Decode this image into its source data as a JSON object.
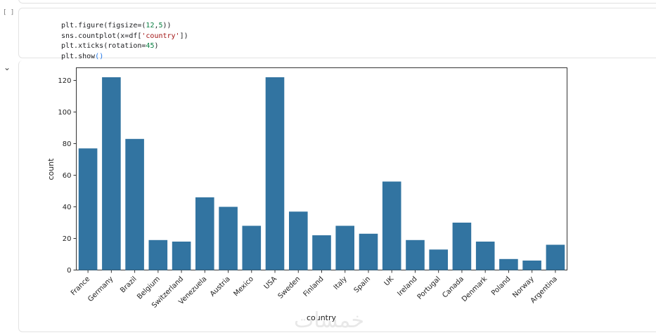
{
  "notebook": {
    "cell_exec_count": "[ ]",
    "code_lines": [
      [
        "plt.figure(figsize=(",
        {
          "num": "12"
        },
        ",",
        {
          "num": "5"
        },
        "))"
      ],
      [
        "sns.countplot(x=df[",
        {
          "str": "'country'"
        },
        "])"
      ],
      [
        "plt.xticks(rotation=",
        {
          "num": "45"
        },
        ")"
      ],
      [
        "plt.show",
        {
          "paren": "()"
        }
      ]
    ],
    "output_toggle_icon": "chevron-down-icon"
  },
  "watermark": "خمسات",
  "chart_data": {
    "type": "bar",
    "categories": [
      "France",
      "Germany",
      "Brazil",
      "Belgium",
      "Switzerland",
      "Venezuela",
      "Austria",
      "Mexico",
      "USA",
      "Sweden",
      "Finland",
      "Italy",
      "Spain",
      "UK",
      "Ireland",
      "Portugal",
      "Canada",
      "Denmark",
      "Poland",
      "Norway",
      "Argentina"
    ],
    "values": [
      77,
      122,
      83,
      19,
      18,
      46,
      40,
      28,
      122,
      37,
      22,
      28,
      23,
      56,
      19,
      13,
      30,
      18,
      7,
      6,
      16
    ],
    "title": "",
    "xlabel": "country",
    "ylabel": "count",
    "ylim": [
      0,
      128
    ],
    "yticks": [
      0,
      20,
      40,
      60,
      80,
      100,
      120
    ],
    "xtick_rotation": 45,
    "bar_color": "#3274a1"
  }
}
